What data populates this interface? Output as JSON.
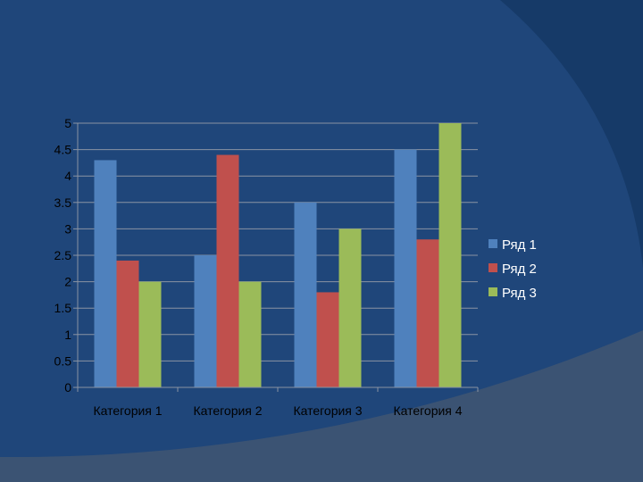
{
  "background": {
    "main_color": "#1f467a",
    "corner_color": "#3b5373",
    "arc_color": "#163a68"
  },
  "chart_data": {
    "type": "bar",
    "categories": [
      "Категория 1",
      "Категория 2",
      "Категория 3",
      "Категория 4"
    ],
    "series": [
      {
        "name": "Ряд 1",
        "color": "#4f81bd",
        "values": [
          4.3,
          2.5,
          3.5,
          4.5
        ]
      },
      {
        "name": "Ряд 2",
        "color": "#c0504d",
        "values": [
          2.4,
          4.4,
          1.8,
          2.8
        ]
      },
      {
        "name": "Ряд 3",
        "color": "#9bbb59",
        "values": [
          2.0,
          2.0,
          3.0,
          5.0
        ]
      }
    ],
    "y_ticks": [
      "0",
      "0.5",
      "1",
      "1.5",
      "2",
      "2.5",
      "3",
      "3.5",
      "4",
      "4.5",
      "5"
    ],
    "ylim": [
      0,
      5
    ],
    "grid": true,
    "legend_position": "right",
    "title": "",
    "xlabel": "",
    "ylabel": ""
  }
}
